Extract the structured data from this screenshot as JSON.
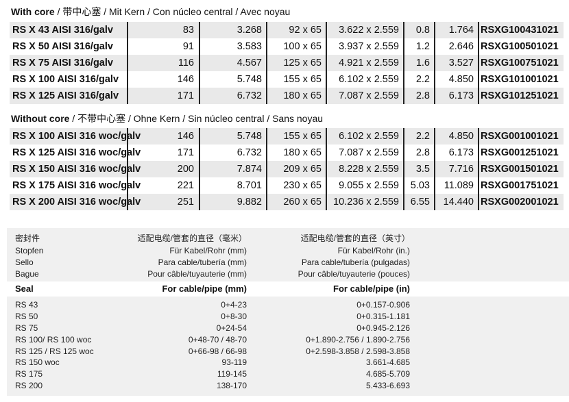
{
  "with_core": {
    "title_bold": "With core",
    "title_rest": " / 带中心塞 / Mit Kern / Con núcleo central / Avec noyau",
    "rows": [
      [
        "RS X 43 AISI 316/galv",
        "83",
        "3.268",
        "92 x 65",
        "3.622 x 2.559",
        "0.8",
        "1.764",
        "RSXG100431021"
      ],
      [
        "RS X 50 AISI 316/galv",
        "91",
        "3.583",
        "100 x 65",
        "3.937 x 2.559",
        "1.2",
        "2.646",
        "RSXG100501021"
      ],
      [
        "RS X 75 AISI 316/galv",
        "116",
        "4.567",
        "125 x 65",
        "4.921 x 2.559",
        "1.6",
        "3.527",
        "RSXG100751021"
      ],
      [
        "RS X 100 AISI 316/galv",
        "146",
        "5.748",
        "155 x 65",
        "6.102 x 2.559",
        "2.2",
        "4.850",
        "RSXG101001021"
      ],
      [
        "RS X 125 AISI 316/galv",
        "171",
        "6.732",
        "180 x 65",
        "7.087 x 2.559",
        "2.8",
        "6.173",
        "RSXG101251021"
      ]
    ]
  },
  "without_core": {
    "title_bold": "Without core",
    "title_rest": " / 不带中心塞 / Ohne Kern / Sin núcleo central / Sans noyau",
    "rows": [
      [
        "RS X 100 AISI 316 woc/galv",
        "146",
        "5.748",
        "155 x 65",
        "6.102 x 2.559",
        "2.2",
        "4.850",
        "RSXG001001021"
      ],
      [
        "RS X 125 AISI 316 woc/galv",
        "171",
        "6.732",
        "180 x 65",
        "7.087 x 2.559",
        "2.8",
        "6.173",
        "RSXG001251021"
      ],
      [
        "RS X 150 AISI 316 woc/galv",
        "200",
        "7.874",
        "209 x 65",
        "8.228 x 2.559",
        "3.5",
        "7.716",
        "RSXG001501021"
      ],
      [
        "RS X 175 AISI 316 woc/galv",
        "221",
        "8.701",
        "230 x 65",
        "9.055 x 2.559",
        "5.03",
        "11.089",
        "RSXG001751021"
      ],
      [
        "RS X 200 AISI 316 woc/galv",
        "251",
        "9.882",
        "260 x 65",
        "10.236 x 2.559",
        "6.55",
        "14.440",
        "RSXG002001021"
      ]
    ]
  },
  "seal_table": {
    "header_lines": [
      [
        "密封件",
        "适配电缆/管套的直径（毫米）",
        "适配电缆/管套的直径（英寸）"
      ],
      [
        "Stopfen",
        "Für Kabel/Rohr (mm)",
        "Für Kabel/Rohr (in.)"
      ],
      [
        "Sello",
        "Para cable/tubería (mm)",
        "Para cable/tubería (pulgadas)"
      ],
      [
        "Bague",
        "Pour câble/tuyauterie (mm)",
        "Pour câble/tuyauterie (pouces)"
      ]
    ],
    "header_main": [
      "Seal",
      "For cable/pipe (mm)",
      "For cable/pipe (in)"
    ],
    "rows": [
      [
        "RS 43",
        "0+4-23",
        "0+0.157-0.906"
      ],
      [
        "RS 50",
        "0+8-30",
        "0+0.315-1.181"
      ],
      [
        "RS 75",
        "0+24-54",
        "0+0.945-2.126"
      ],
      [
        "RS 100/ RS 100 woc",
        "0+48-70 / 48-70",
        "0+1.890-2.756 / 1.890-2.756"
      ],
      [
        "RS 125 / RS 125 woc",
        "0+66-98 / 66-98",
        "0+2.598-3.858 / 2.598-3.858"
      ],
      [
        "RS 150 woc",
        "93-119",
        "3.661-4.685"
      ],
      [
        "RS 175",
        "119-145",
        "4.685-5.709"
      ],
      [
        "RS 200",
        "138-170",
        "5.433-6.693"
      ]
    ]
  }
}
